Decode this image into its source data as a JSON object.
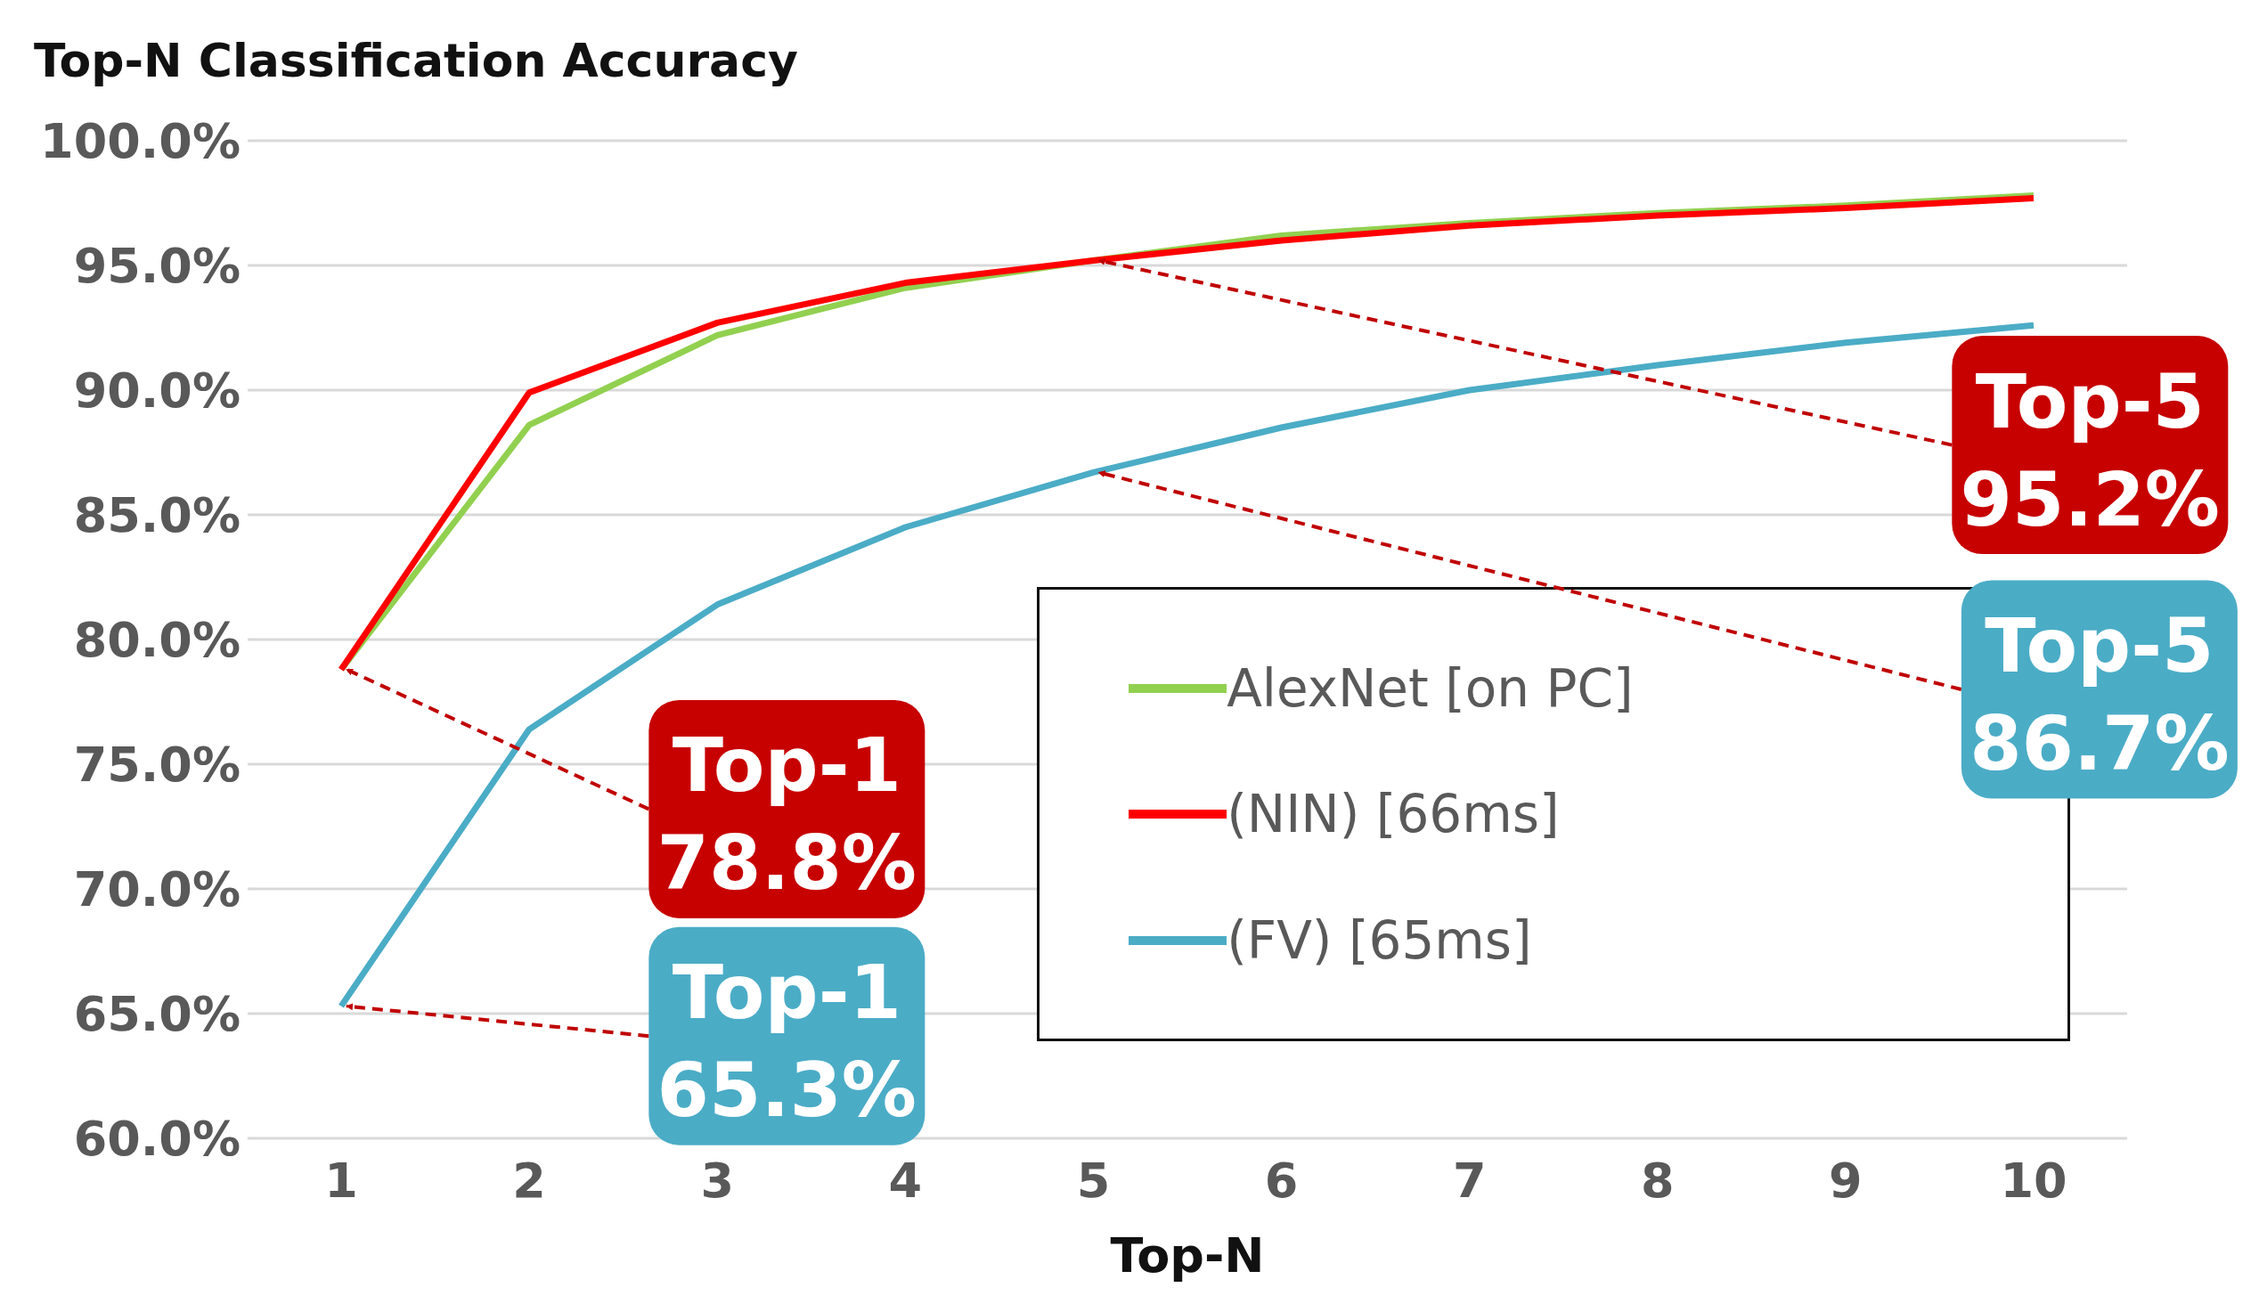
{
  "chart_data": {
    "type": "line",
    "title": "Top-N Classification Accuracy",
    "xlabel": "Top-N",
    "categories": [
      "1",
      "2",
      "3",
      "4",
      "5",
      "6",
      "7",
      "8",
      "9",
      "10"
    ],
    "series": [
      {
        "name": "AlexNet [on PC]",
        "color": "#92d050",
        "values": [
          78.8,
          88.6,
          92.2,
          94.1,
          95.2,
          96.2,
          96.7,
          97.1,
          97.4,
          97.8
        ]
      },
      {
        "name": "(NIN) [66ms]",
        "color": "#ff0000",
        "values": [
          78.8,
          89.9,
          92.7,
          94.3,
          95.2,
          96.0,
          96.6,
          97.0,
          97.3,
          97.7
        ]
      },
      {
        "name": "(FV) [65ms]",
        "color": "#4bacc6",
        "values": [
          65.3,
          76.4,
          81.4,
          84.5,
          86.7,
          88.5,
          90.0,
          91.0,
          91.9,
          92.6
        ]
      }
    ],
    "ylim": [
      60,
      100
    ],
    "yticks": [
      {
        "value": 60,
        "label": "60.0%"
      },
      {
        "value": 65,
        "label": "65.0%"
      },
      {
        "value": 70,
        "label": "70.0%"
      },
      {
        "value": 75,
        "label": "75.0%"
      },
      {
        "value": 80,
        "label": "80.0%"
      },
      {
        "value": 85,
        "label": "85.0%"
      },
      {
        "value": 90,
        "label": "90.0%"
      },
      {
        "value": 95,
        "label": "95.0%"
      },
      {
        "value": 100,
        "label": "100.0%"
      }
    ],
    "grid": "y",
    "legend": "bottom right",
    "marker": "none",
    "line_style": "solid",
    "annotations": [
      {
        "text": "Top-1\n78.8%",
        "x": "1",
        "y": 78.8
      },
      {
        "text": "Top-1\n65.3%",
        "x": "1",
        "y": 65.3
      },
      {
        "text": "Top-5\n95.2%",
        "x": "5",
        "y": 95.2
      },
      {
        "text": "Top-5\n86.7%",
        "x": "5",
        "y": 86.7
      }
    ]
  }
}
